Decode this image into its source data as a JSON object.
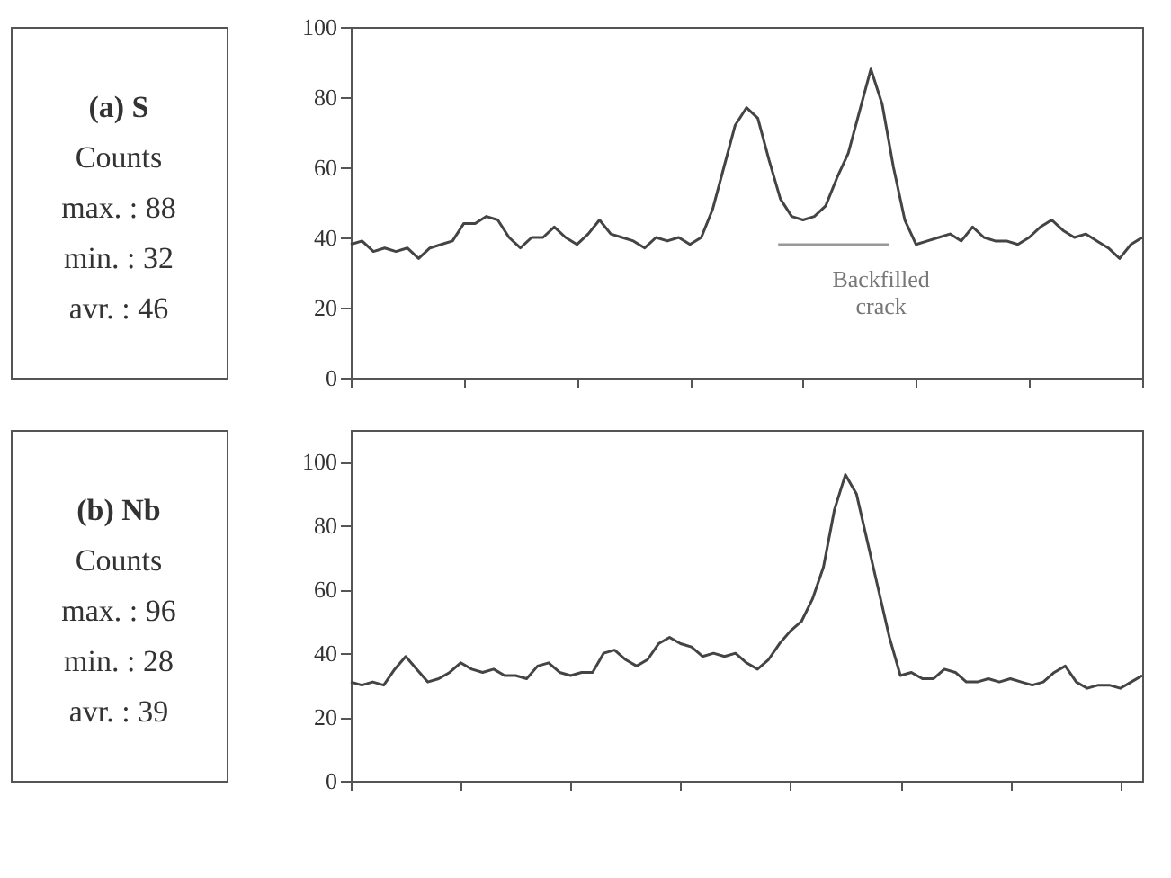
{
  "chart_data": [
    {
      "type": "line",
      "title": "(a) S",
      "annotations": [
        "Counts",
        "max. : 88",
        "min. : 32",
        "avr. : 46",
        "Backfilled crack"
      ],
      "categories": [
        null,
        null,
        null,
        null,
        null,
        null,
        null,
        null,
        null,
        null,
        null,
        null,
        null,
        null,
        null,
        null,
        null,
        null,
        null,
        null,
        null,
        null,
        null,
        null,
        null,
        null,
        null,
        null,
        null,
        null,
        null,
        null,
        null,
        null,
        null,
        null,
        null,
        null,
        null,
        null,
        null,
        null,
        null,
        null,
        null,
        null,
        null,
        null,
        null,
        null,
        null,
        null,
        null,
        null,
        null,
        null,
        null,
        null,
        null,
        null,
        null,
        null,
        null,
        null,
        null,
        null,
        null,
        null,
        null,
        null,
        null
      ],
      "series": [
        {
          "color": "#444444",
          "values": [
            38,
            39,
            36,
            37,
            36,
            37,
            34,
            37,
            38,
            39,
            44,
            44,
            46,
            45,
            40,
            37,
            40,
            40,
            43,
            40,
            38,
            41,
            45,
            41,
            40,
            39,
            37,
            40,
            39,
            40,
            38,
            40,
            48,
            60,
            72,
            77,
            74,
            62,
            51,
            46,
            45,
            46,
            49,
            57,
            64,
            76,
            88,
            78,
            60,
            45,
            38,
            39,
            40,
            41,
            39,
            43,
            40,
            39,
            39,
            38,
            40,
            43,
            45,
            42,
            40,
            41,
            39,
            37,
            34,
            38,
            40
          ]
        }
      ],
      "ylim": [
        0,
        100
      ],
      "yticks": [
        0,
        20,
        40,
        60,
        80,
        100
      ],
      "tick_labels": "y",
      "grid": false
    },
    {
      "type": "line",
      "title": "(b) Nb",
      "annotations": [
        "Counts",
        "max. : 96",
        "min. : 28",
        "avr. : 39"
      ],
      "categories": [
        null,
        null,
        null,
        null,
        null,
        null,
        null,
        null,
        null,
        null,
        null,
        null,
        null,
        null,
        null,
        null,
        null,
        null,
        null,
        null,
        null,
        null,
        null,
        null,
        null,
        null,
        null,
        null,
        null,
        null,
        null,
        null,
        null,
        null,
        null,
        null,
        null,
        null,
        null,
        null,
        null,
        null,
        null,
        null,
        null,
        null,
        null,
        null,
        null,
        null,
        null,
        null,
        null,
        null,
        null,
        null,
        null,
        null,
        null,
        null,
        null,
        null,
        null,
        null,
        null,
        null,
        null,
        null,
        null,
        null,
        null,
        null,
        null
      ],
      "series": [
        {
          "color": "#444444",
          "values": [
            31,
            30,
            31,
            30,
            35,
            39,
            35,
            31,
            32,
            34,
            37,
            35,
            34,
            35,
            33,
            33,
            32,
            36,
            37,
            34,
            33,
            34,
            34,
            40,
            41,
            38,
            36,
            38,
            43,
            45,
            43,
            42,
            39,
            40,
            39,
            40,
            37,
            35,
            38,
            43,
            47,
            50,
            57,
            67,
            85,
            96,
            90,
            75,
            60,
            45,
            33,
            34,
            32,
            32,
            35,
            34,
            31,
            31,
            32,
            31,
            32,
            31,
            30,
            31,
            34,
            36,
            31,
            29,
            30,
            30,
            29,
            31,
            33
          ]
        }
      ],
      "ylim": [
        0,
        110
      ],
      "yticks": [
        0,
        20,
        40,
        60,
        80,
        100
      ],
      "tick_labels": "y",
      "grid": false
    }
  ]
}
